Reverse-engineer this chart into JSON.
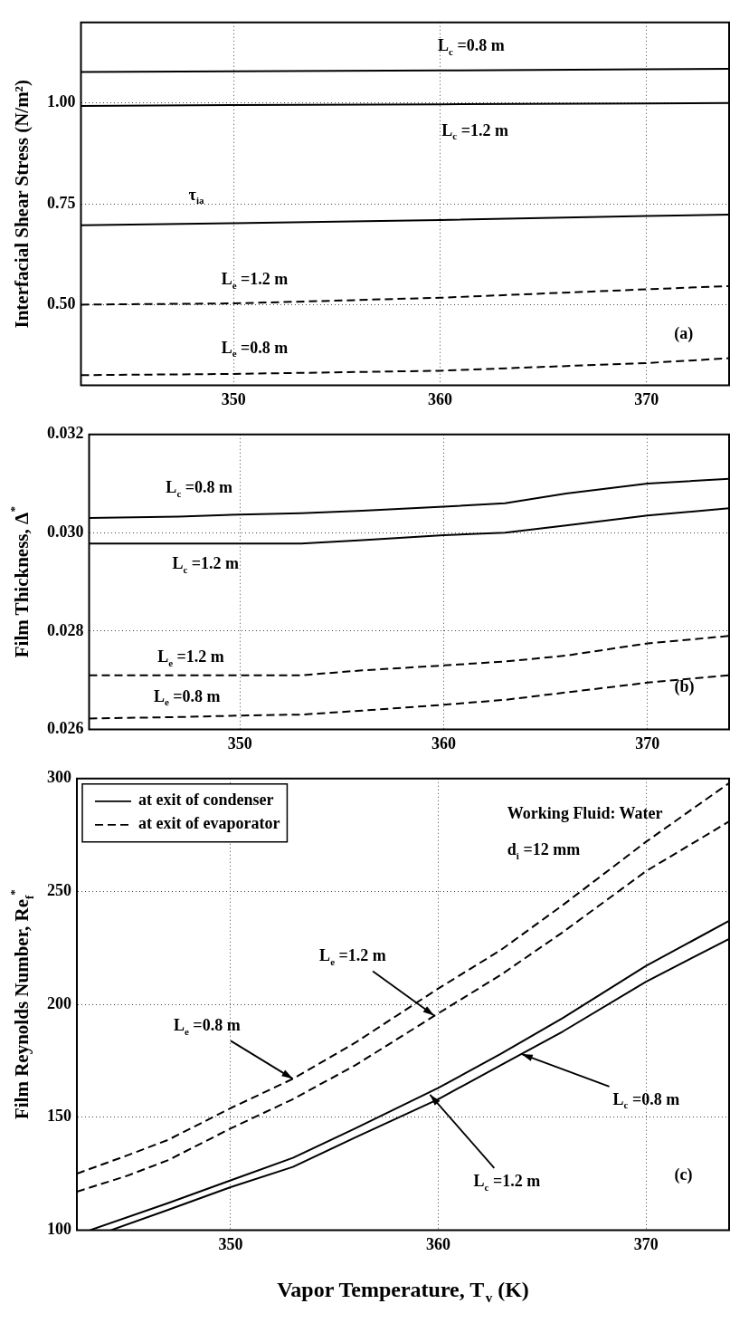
{
  "chart_data": [
    {
      "type": "line",
      "ylabel": "Interfacial Shear Stress (N/m²)",
      "xlim": [
        342.6,
        374
      ],
      "xticks": [
        350,
        360,
        370
      ],
      "ylim": [
        0.3,
        1.2
      ],
      "yticks": [
        {
          "value": 0.5,
          "label": "0.50"
        },
        {
          "value": 0.75,
          "label": "0.75"
        },
        {
          "value": 1,
          "label": "1.00"
        }
      ],
      "grid": true,
      "x": [
        342.6,
        350,
        360,
        370,
        374
      ],
      "series": [
        {
          "color": "#000000",
          "line_style": "solid",
          "values": [
            1.077,
            1.079,
            1.081,
            1.084,
            1.085
          ]
        },
        {
          "color": "#000000",
          "line_style": "solid",
          "values": [
            0.993,
            0.995,
            0.997,
            0.999,
            1.0
          ]
        },
        {
          "color": "#000000",
          "line_style": "solid",
          "values": [
            0.697,
            0.702,
            0.71,
            0.72,
            0.723
          ]
        },
        {
          "color": "#000000",
          "line_style": "dashed",
          "values": [
            0.5,
            0.503,
            0.517,
            0.538,
            0.546
          ]
        },
        {
          "color": "#000000",
          "line_style": "dashed",
          "values": [
            0.325,
            0.328,
            0.336,
            0.355,
            0.367
          ]
        }
      ],
      "annotations": [
        "(a)",
        "L$_{c}$ =0.8 m",
        "L$_{c}$ =1.2 m",
        "τ$_{ia}$",
        "L$_{e}$ =1.2 m",
        "L$_{e}$ =0.8 m"
      ]
    },
    {
      "type": "line",
      "ylabel": "Film Thickness, Δ$^{*}$",
      "xlim": [
        342.6,
        374
      ],
      "xticks": [
        350,
        360,
        370
      ],
      "ylim": [
        0.026,
        0.032
      ],
      "yticks": [
        0.026,
        0.028,
        {
          "value": 0.03,
          "label": "0.030"
        },
        0.032
      ],
      "grid": true,
      "x": [
        342.6,
        347,
        350,
        353,
        356,
        360,
        363,
        366,
        370,
        374
      ],
      "series": [
        {
          "color": "#000000",
          "line_style": "solid",
          "values": [
            0.0303,
            0.03033,
            0.03037,
            0.0304,
            0.03045,
            0.03053,
            0.0306,
            0.0308,
            0.031,
            0.0311
          ]
        },
        {
          "color": "#000000",
          "line_style": "solid",
          "values": [
            0.02978,
            0.02978,
            0.02978,
            0.02978,
            0.02985,
            0.02995,
            0.03,
            0.03015,
            0.03035,
            0.0305
          ]
        },
        {
          "color": "#000000",
          "line_style": "dashed",
          "values": [
            0.0271,
            0.0271,
            0.0271,
            0.0271,
            0.0272,
            0.0273,
            0.02738,
            0.0275,
            0.02775,
            0.0279
          ]
        },
        {
          "color": "#000000",
          "line_style": "dashed",
          "values": [
            0.02622,
            0.02625,
            0.02628,
            0.0263,
            0.02638,
            0.0265,
            0.0266,
            0.02675,
            0.02695,
            0.0271
          ]
        }
      ],
      "annotations": [
        "(b)",
        "L$_{c}$ =0.8 m",
        "L$_{c}$ =1.2 m",
        "L$_{e}$ =1.2 m",
        "L$_{e}$ =0.8 m"
      ]
    },
    {
      "type": "line",
      "xlabel": "Vapor Temperature, T$_{v}$ (K)",
      "ylabel": "Film Reynolds Number, Re$_{f}$$^{*}$",
      "xlim": [
        342.6,
        374
      ],
      "xticks": [
        350,
        360,
        370
      ],
      "ylim": [
        100,
        300
      ],
      "yticks": [
        100,
        150,
        200,
        250,
        300
      ],
      "grid": true,
      "legend": "top left",
      "series": [
        {
          "name": "at exit of condenser",
          "color": "#000000",
          "line_style": "solid",
          "x": [
            343.24,
            347,
            350,
            353,
            356,
            360,
            363,
            366,
            370,
            374
          ],
          "values": [
            100,
            112,
            122,
            132,
            145,
            163,
            178,
            194,
            217,
            237
          ]
        },
        {
          "color": "#000000",
          "line_style": "solid",
          "x": [
            344.25,
            347,
            350,
            353,
            356,
            360,
            363,
            366,
            370,
            374
          ],
          "values": [
            100,
            109,
            119,
            128,
            141,
            158,
            173,
            188,
            210,
            229
          ]
        },
        {
          "name": "at exit of evaporator",
          "color": "#000000",
          "line_style": "dashed",
          "x": [
            342.6,
            345,
            347,
            350,
            353,
            356,
            360,
            363,
            366,
            370,
            374
          ],
          "values": [
            125,
            133,
            140,
            154,
            167,
            183,
            207,
            224,
            244,
            272,
            298
          ]
        },
        {
          "color": "#000000",
          "line_style": "dashed",
          "x": [
            342.6,
            345,
            347,
            350,
            353,
            356,
            360,
            363,
            366,
            370,
            374
          ],
          "values": [
            117,
            124,
            131,
            145,
            158,
            173,
            196,
            213,
            232,
            259,
            281
          ]
        }
      ],
      "annotations": [
        "Working Fluid: Water",
        "d$_{i}$ =12 mm",
        "(c)",
        {
          "text": "L$_{e}$ =0.8 m",
          "x": 353,
          "y": 167
        },
        {
          "text": "L$_{e}$ =1.2 m",
          "x": 359.8,
          "y": 195
        },
        {
          "text": "L$_{c}$ =0.8 m",
          "x": 364,
          "y": 178
        },
        {
          "text": "L$_{c}$ =1.2 m",
          "x": 359.6,
          "y": 160
        }
      ]
    }
  ]
}
